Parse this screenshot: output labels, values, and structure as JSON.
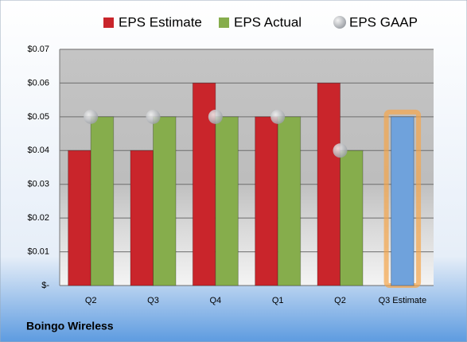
{
  "chart_data": {
    "type": "bar",
    "title": "Boingo Wireless",
    "categories": [
      "Q2",
      "Q3",
      "Q4",
      "Q1",
      "Q2",
      "Q3 Estimate"
    ],
    "series": [
      {
        "name": "EPS Estimate",
        "color": "#c9252b",
        "colors": [
          "#c9252b",
          "#c9252b",
          "#c9252b",
          "#c9252b",
          "#c9252b",
          "#6fa2dc"
        ],
        "values": [
          0.04,
          0.04,
          0.06,
          0.05,
          0.06,
          0.05
        ]
      },
      {
        "name": "EPS Actual",
        "color": "#86ad4c",
        "values": [
          0.05,
          0.05,
          0.05,
          0.05,
          0.04,
          null
        ]
      },
      {
        "name": "EPS GAAP",
        "color": "#b4b8bd",
        "marker": "circle",
        "values": [
          0.05,
          0.05,
          0.05,
          0.05,
          0.04,
          null
        ]
      }
    ],
    "ylim": [
      0,
      0.07
    ],
    "yticks": [
      {
        "value": 0,
        "label": "$-"
      },
      {
        "value": 0.01,
        "label": "$0.01"
      },
      {
        "value": 0.02,
        "label": "$0.02"
      },
      {
        "value": 0.03,
        "label": "$0.03"
      },
      {
        "value": 0.04,
        "label": "$0.04"
      },
      {
        "value": 0.05,
        "label": "$0.05"
      },
      {
        "value": 0.06,
        "label": "$0.06"
      },
      {
        "value": 0.07,
        "label": "$0.07"
      }
    ],
    "grid": true,
    "legend": "top"
  }
}
